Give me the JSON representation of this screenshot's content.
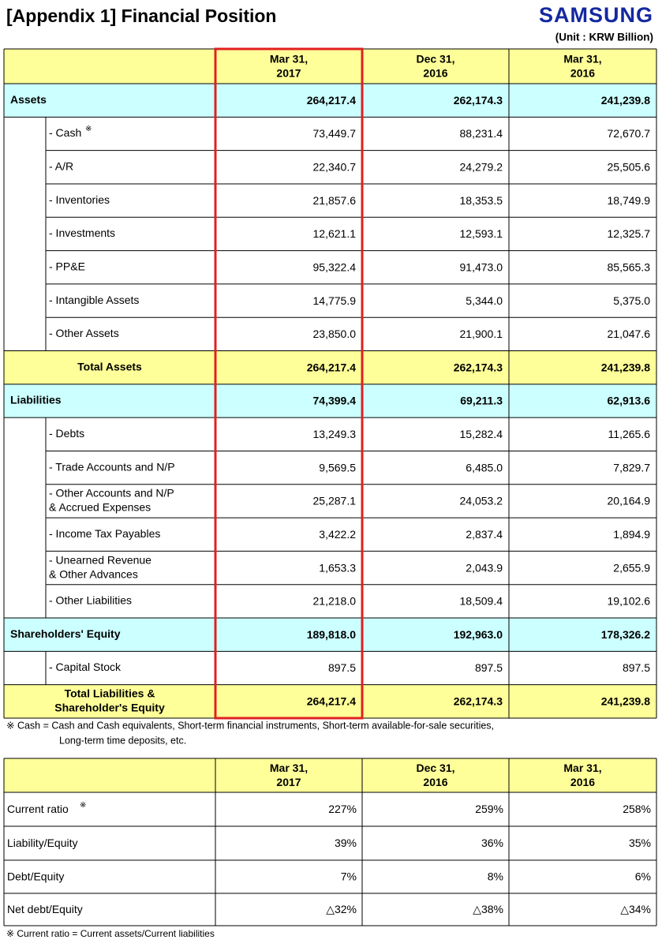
{
  "header": {
    "title": "[Appendix 1]  Financial Position",
    "logo": "SAMSUNG",
    "unit": "(Unit : KRW Billion)"
  },
  "table": {
    "columns": [
      [
        "Mar 31,",
        "2017"
      ],
      [
        "Dec 31,",
        "2016"
      ],
      [
        "Mar 31,",
        "2016"
      ]
    ],
    "rows": [
      {
        "style": "section",
        "label": [
          "Assets"
        ],
        "values": [
          "264,217.4",
          "262,174.3",
          "241,239.8"
        ]
      },
      {
        "style": "item",
        "label": [
          "- Cash"
        ],
        "mark": "※",
        "values": [
          "73,449.7",
          "88,231.4",
          "72,670.7"
        ]
      },
      {
        "style": "item",
        "label": [
          "- A/R"
        ],
        "values": [
          "22,340.7",
          "24,279.2",
          "25,505.6"
        ]
      },
      {
        "style": "item",
        "label": [
          "- Inventories"
        ],
        "values": [
          "21,857.6",
          "18,353.5",
          "18,749.9"
        ]
      },
      {
        "style": "item",
        "label": [
          "- Investments"
        ],
        "values": [
          "12,621.1",
          "12,593.1",
          "12,325.7"
        ]
      },
      {
        "style": "item",
        "label": [
          "- PP&E"
        ],
        "values": [
          "95,322.4",
          "91,473.0",
          "85,565.3"
        ]
      },
      {
        "style": "item",
        "label": [
          "- Intangible Assets"
        ],
        "values": [
          "14,775.9",
          "5,344.0",
          "5,375.0"
        ]
      },
      {
        "style": "item",
        "label": [
          "- Other Assets"
        ],
        "values": [
          "23,850.0",
          "21,900.1",
          "21,047.6"
        ]
      },
      {
        "style": "total",
        "label": [
          "Total Assets"
        ],
        "values": [
          "264,217.4",
          "262,174.3",
          "241,239.8"
        ]
      },
      {
        "style": "section",
        "label": [
          "Liabilities"
        ],
        "values": [
          "74,399.4",
          "69,211.3",
          "62,913.6"
        ]
      },
      {
        "style": "item",
        "label": [
          "- Debts"
        ],
        "values": [
          "13,249.3",
          "15,282.4",
          "11,265.6"
        ]
      },
      {
        "style": "item",
        "label": [
          "- Trade Accounts and N/P"
        ],
        "values": [
          "9,569.5",
          "6,485.0",
          "7,829.7"
        ]
      },
      {
        "style": "item",
        "label": [
          "- Other Accounts and N/P",
          "  & Accrued Expenses"
        ],
        "values": [
          "25,287.1",
          "24,053.2",
          "20,164.9"
        ]
      },
      {
        "style": "item",
        "label": [
          "- Income Tax Payables"
        ],
        "values": [
          "3,422.2",
          "2,837.4",
          "1,894.9"
        ]
      },
      {
        "style": "item",
        "label": [
          "- Unearned Revenue",
          "  & Other Advances"
        ],
        "values": [
          "1,653.3",
          "2,043.9",
          "2,655.9"
        ]
      },
      {
        "style": "item",
        "label": [
          "- Other Liabilities"
        ],
        "values": [
          "21,218.0",
          "18,509.4",
          "19,102.6"
        ]
      },
      {
        "style": "section",
        "label": [
          "Shareholders' Equity"
        ],
        "values": [
          "189,818.0",
          "192,963.0",
          "178,326.2"
        ]
      },
      {
        "style": "item",
        "label": [
          "- Capital Stock"
        ],
        "values": [
          "897.5",
          "897.5",
          "897.5"
        ]
      },
      {
        "style": "total",
        "label": [
          "Total Liabilities &",
          "Shareholder's Equity"
        ],
        "values": [
          "264,217.4",
          "262,174.3",
          "241,239.8"
        ]
      }
    ]
  },
  "note": [
    "※ Cash = Cash and Cash equivalents, Short-term financial instruments, Short-term available-for-sale securities,",
    "Long-term time deposits, etc."
  ],
  "ratio_table": {
    "columns": [
      [
        "Mar 31,",
        "2017"
      ],
      [
        "Dec 31,",
        "2016"
      ],
      [
        "Mar 31,",
        "2016"
      ]
    ],
    "rows": [
      {
        "label": "Current ratio",
        "mark": "※",
        "values": [
          "227%",
          "259%",
          "258%"
        ]
      },
      {
        "label": "Liability/Equity",
        "values": [
          "39%",
          "36%",
          "35%"
        ]
      },
      {
        "label": "Debt/Equity",
        "values": [
          "7%",
          "8%",
          "6%"
        ]
      },
      {
        "label": "Net debt/Equity",
        "values": [
          "△32%",
          "△38%",
          "△34%"
        ]
      }
    ]
  },
  "ratio_note": "※ Current ratio = Current assets/Current liabilities"
}
